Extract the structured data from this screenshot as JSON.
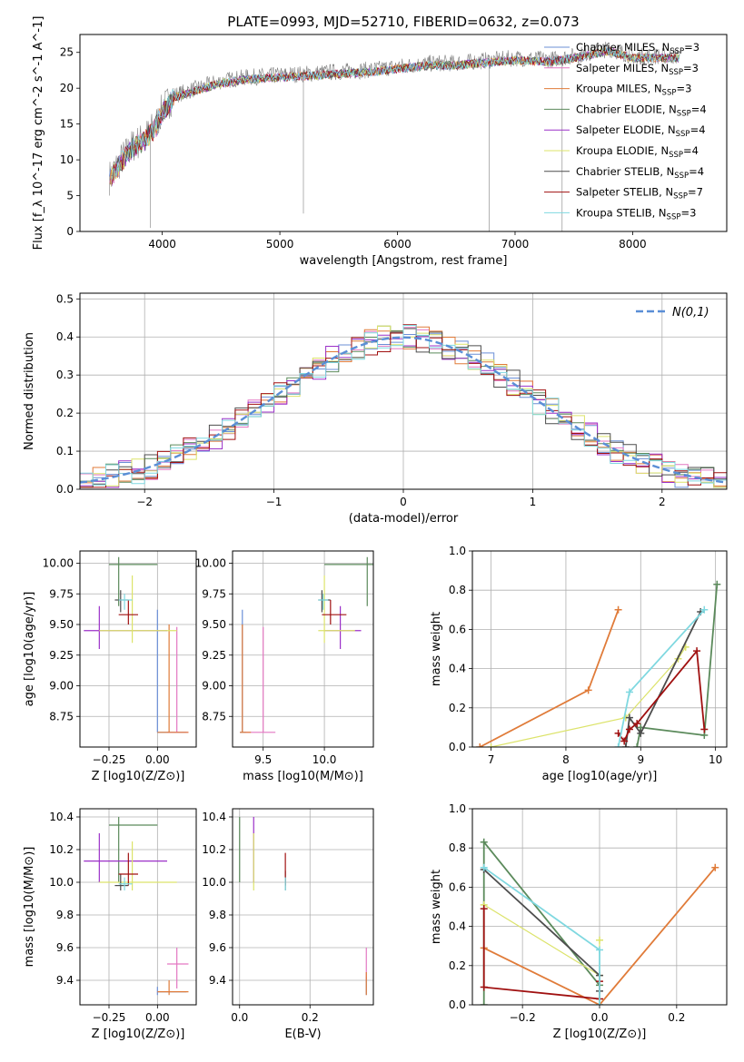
{
  "title": "PLATE=0993, MJD=52710, FIBERID=0632, z=0.073",
  "colors": {
    "Chabrier MILES": "#6b8fd6",
    "Salpeter MILES": "#e377c2",
    "Kroupa MILES": "#e07b39",
    "Chabrier ELODIE": "#5b8a5b",
    "Salpeter ELODIE": "#9b30c8",
    "Kroupa ELODIE": "#dce36a",
    "Chabrier STELIB": "#4d4d4d",
    "Salpeter STELIB": "#a01010",
    "Kroupa STELIB": "#7fd8e0",
    "normal": "#5a8ed6",
    "grid": "#b0b0b0"
  },
  "chart_data": [
    {
      "id": "spectrum",
      "type": "line",
      "title": "PLATE=0993, MJD=52710, FIBERID=0632, z=0.073",
      "xlabel": "wavelength [Angstrom, rest frame]",
      "ylabel": "Flux [f_λ 10^-17 erg cm^-2 s^-1 A^-1]",
      "xlim": [
        3300,
        8800
      ],
      "ylim": [
        0,
        27.5
      ],
      "xticks": [
        4000,
        5000,
        6000,
        7000,
        8000
      ],
      "yticks": [
        0,
        5,
        10,
        15,
        20,
        25
      ],
      "grid": false,
      "legend_position": "top-right",
      "legend": [
        {
          "label": "Chabrier MILES",
          "nssp": "3"
        },
        {
          "label": "Salpeter MILES",
          "nssp": "3"
        },
        {
          "label": "Kroupa MILES",
          "nssp": "3"
        },
        {
          "label": "Chabrier ELODIE",
          "nssp": "4"
        },
        {
          "label": "Salpeter ELODIE",
          "nssp": "4"
        },
        {
          "label": "Kroupa ELODIE",
          "nssp": "4"
        },
        {
          "label": "Chabrier STELIB",
          "nssp": "4"
        },
        {
          "label": "Salpeter STELIB",
          "nssp": "7"
        },
        {
          "label": "Kroupa STELIB",
          "nssp": "3"
        }
      ],
      "continuum": [
        [
          3550,
          7.5
        ],
        [
          3650,
          10
        ],
        [
          3750,
          12
        ],
        [
          3850,
          13
        ],
        [
          3950,
          15
        ],
        [
          4000,
          17
        ],
        [
          4100,
          19
        ],
        [
          4200,
          19.5
        ],
        [
          4300,
          20
        ],
        [
          4500,
          21
        ],
        [
          4700,
          21.5
        ],
        [
          5000,
          21.8
        ],
        [
          5200,
          22
        ],
        [
          5500,
          22.3
        ],
        [
          5800,
          22.6
        ],
        [
          6000,
          23
        ],
        [
          6300,
          23.5
        ],
        [
          6500,
          23.5
        ],
        [
          6700,
          23.8
        ],
        [
          7000,
          24.2
        ],
        [
          7300,
          24
        ],
        [
          7500,
          24.5
        ],
        [
          7800,
          25.5
        ],
        [
          8000,
          24.5
        ],
        [
          8200,
          24.5
        ],
        [
          8400,
          24.5
        ]
      ],
      "data_absorption": [
        [
          5200,
          2.5
        ],
        [
          6780,
          0
        ],
        [
          7400,
          0
        ],
        [
          3900,
          0.5
        ]
      ]
    },
    {
      "id": "residuals",
      "type": "histogram",
      "xlabel": "(data-model)/error",
      "ylabel": "Normed distribution",
      "xlim": [
        -2.5,
        2.5
      ],
      "ylim": [
        0,
        0.515
      ],
      "xticks": [
        -2,
        -1,
        0,
        1,
        2
      ],
      "yticks": [
        0.0,
        0.1,
        0.2,
        0.3,
        0.4,
        0.5
      ],
      "grid": true,
      "legend_position": "top-right",
      "normal_label": "N(0,1)"
    },
    {
      "id": "age-vs-Z",
      "type": "scatter",
      "xlabel": "Z [log10(Z/Z⊙)]",
      "ylabel": "age [log10(age/yr)]",
      "xlim": [
        -0.4,
        0.2
      ],
      "ylim": [
        8.5,
        10.1
      ],
      "xticks": [
        -0.25,
        0.0
      ],
      "yticks": [
        8.75,
        9.0,
        9.25,
        9.5,
        9.75,
        10.0
      ],
      "grid": true
    },
    {
      "id": "age-vs-mass",
      "type": "scatter",
      "xlabel": "mass [log10(M/M⊙)]",
      "ylabel": "",
      "xlim": [
        9.25,
        10.4
      ],
      "ylim": [
        8.5,
        10.1
      ],
      "xticks": [
        9.5,
        10.0
      ],
      "yticks": [
        8.75,
        9.0,
        9.25,
        9.5,
        9.75,
        10.0
      ],
      "grid": true
    },
    {
      "id": "mass-weight-vs-age",
      "type": "line",
      "xlabel": "age [log10(age/yr)]",
      "ylabel": "mass weight",
      "xlim": [
        6.75,
        10.15
      ],
      "ylim": [
        0,
        1
      ],
      "xticks": [
        7,
        8,
        9,
        10
      ],
      "yticks": [
        0.0,
        0.2,
        0.4,
        0.6,
        0.8,
        1.0
      ],
      "grid": true
    },
    {
      "id": "mass-vs-Z",
      "type": "scatter",
      "xlabel": "Z [log10(Z/Z⊙)]",
      "ylabel": "mass [log10(M/M⊙)]",
      "xlim": [
        -0.4,
        0.2
      ],
      "ylim": [
        9.25,
        10.45
      ],
      "xticks": [
        -0.25,
        0.0
      ],
      "yticks": [
        9.4,
        9.6,
        9.8,
        10.0,
        10.2,
        10.4
      ],
      "grid": true
    },
    {
      "id": "mass-vs-ebv",
      "type": "scatter",
      "xlabel": "E(B-V)",
      "ylabel": "",
      "xlim": [
        -0.02,
        0.38
      ],
      "ylim": [
        9.25,
        10.45
      ],
      "xticks": [
        0.0,
        0.2
      ],
      "yticks": [
        9.4,
        9.6,
        9.8,
        10.0,
        10.2,
        10.4
      ],
      "grid": true
    },
    {
      "id": "mass-weight-vs-Z",
      "type": "line",
      "xlabel": "Z [log10(Z/Z⊙)]",
      "ylabel": "mass weight",
      "xlim": [
        -0.33,
        0.33
      ],
      "ylim": [
        0,
        1
      ],
      "xticks": [
        -0.2,
        0.0,
        0.2
      ],
      "yticks": [
        0.0,
        0.2,
        0.4,
        0.6,
        0.8,
        1.0
      ],
      "grid": true
    }
  ],
  "models": [
    {
      "name": "Chabrier MILES",
      "Z": 0.0,
      "Z_lo": 0.0,
      "Z_hi": 0.15,
      "age": 8.62,
      "age_lo": 8.62,
      "age_hi": 9.62,
      "mass": 9.33,
      "mass_lo": 9.31,
      "mass_hi": 9.36,
      "ebv": 0.36,
      "ebv_lo": 9.31,
      "ebv_hi": 9.42
    },
    {
      "name": "Salpeter MILES",
      "Z": 0.1,
      "Z_lo": 0.05,
      "Z_hi": 0.16,
      "age": 8.62,
      "age_lo": 8.62,
      "age_hi": 9.48,
      "mass": 9.5,
      "mass_lo": 9.35,
      "mass_hi": 9.6,
      "ebv": 0.36,
      "ebv_lo": 9.4,
      "ebv_hi": 9.6
    },
    {
      "name": "Kroupa MILES",
      "Z": 0.06,
      "Z_lo": 0.0,
      "Z_hi": 0.16,
      "age": 8.62,
      "age_lo": 8.62,
      "age_hi": 9.5,
      "mass": 9.33,
      "mass_lo": 9.31,
      "mass_hi": 9.4,
      "ebv": 0.36,
      "ebv_lo": 9.31,
      "ebv_hi": 9.45
    },
    {
      "name": "Chabrier ELODIE",
      "Z": -0.2,
      "Z_lo": -0.25,
      "Z_hi": 0.0,
      "age": 9.99,
      "age_lo": 9.65,
      "age_hi": 10.05,
      "mass": 10.35,
      "mass_lo": 10.0,
      "mass_hi": 10.4,
      "ebv": 0.0,
      "ebv_lo": 10.0,
      "ebv_hi": 10.4
    },
    {
      "name": "Salpeter ELODIE",
      "Z": -0.3,
      "Z_lo": -0.38,
      "Z_hi": 0.05,
      "age": 9.45,
      "age_lo": 9.3,
      "age_hi": 9.65,
      "mass": 10.13,
      "mass_lo": 10.0,
      "mass_hi": 10.3,
      "ebv": 0.04,
      "ebv_lo": 10.0,
      "ebv_hi": 10.4
    },
    {
      "name": "Kroupa ELODIE",
      "Z": -0.13,
      "Z_lo": -0.3,
      "Z_hi": 0.1,
      "age": 9.45,
      "age_lo": 9.35,
      "age_hi": 9.9,
      "mass": 10.0,
      "mass_lo": 9.95,
      "mass_hi": 10.25,
      "ebv": 0.04,
      "ebv_lo": 9.95,
      "ebv_hi": 10.3
    },
    {
      "name": "Chabrier STELIB",
      "Z": -0.19,
      "Z_lo": -0.22,
      "Z_hi": -0.15,
      "age": 9.7,
      "age_lo": 9.6,
      "age_hi": 9.78,
      "mass": 9.98,
      "mass_lo": 9.95,
      "mass_hi": 10.05,
      "ebv": 0.13,
      "ebv_lo": 9.95,
      "ebv_hi": 10.07
    },
    {
      "name": "Salpeter STELIB",
      "Z": -0.15,
      "Z_lo": -0.2,
      "Z_hi": -0.1,
      "age": 9.58,
      "age_lo": 9.5,
      "age_hi": 9.7,
      "mass": 10.05,
      "mass_lo": 9.98,
      "mass_hi": 10.18,
      "ebv": 0.13,
      "ebv_lo": 9.98,
      "ebv_hi": 10.18
    },
    {
      "name": "Kroupa STELIB",
      "Z": -0.17,
      "Z_lo": -0.2,
      "Z_hi": -0.13,
      "age": 9.7,
      "age_lo": 9.62,
      "age_hi": 9.75,
      "mass": 9.99,
      "mass_lo": 9.95,
      "mass_hi": 10.03,
      "ebv": 0.13,
      "ebv_lo": 9.95,
      "ebv_hi": 10.03
    }
  ],
  "mass_weight_age": [
    {
      "name": "Kroupa MILES",
      "points": [
        [
          6.85,
          0.0
        ],
        [
          8.3,
          0.29
        ],
        [
          8.7,
          0.7
        ]
      ]
    },
    {
      "name": "Chabrier ELODIE",
      "points": [
        [
          8.95,
          0.0
        ],
        [
          9.0,
          0.1
        ],
        [
          9.85,
          0.06
        ],
        [
          10.02,
          0.83
        ]
      ]
    },
    {
      "name": "Kroupa ELODIE",
      "points": [
        [
          7.0,
          0.0
        ],
        [
          8.8,
          0.15
        ],
        [
          9.5,
          0.45
        ],
        [
          9.6,
          0.51
        ]
      ]
    },
    {
      "name": "Chabrier STELIB",
      "points": [
        [
          8.8,
          0.0
        ],
        [
          8.85,
          0.15
        ],
        [
          9.0,
          0.07
        ],
        [
          9.8,
          0.69
        ]
      ]
    },
    {
      "name": "Salpeter STELIB",
      "points": [
        [
          8.7,
          0.07
        ],
        [
          8.78,
          0.03
        ],
        [
          8.85,
          0.09
        ],
        [
          8.95,
          0.12
        ],
        [
          9.75,
          0.49
        ],
        [
          9.85,
          0.09
        ]
      ]
    },
    {
      "name": "Kroupa STELIB",
      "points": [
        [
          8.7,
          0.0
        ],
        [
          8.85,
          0.28
        ],
        [
          9.85,
          0.7
        ]
      ]
    }
  ],
  "mass_weight_Z": [
    {
      "name": "Kroupa MILES",
      "points": [
        [
          -0.3,
          0.29
        ],
        [
          0.0,
          0.0
        ],
        [
          0.3,
          0.7
        ]
      ]
    },
    {
      "name": "Chabrier ELODIE",
      "points": [
        [
          -0.3,
          0.0
        ],
        [
          -0.3,
          0.83
        ],
        [
          0.0,
          0.1
        ]
      ]
    },
    {
      "name": "Kroupa ELODIE",
      "points": [
        [
          -0.3,
          0.51
        ],
        [
          0.0,
          0.15
        ],
        [
          0.0,
          0.33
        ]
      ]
    },
    {
      "name": "Chabrier STELIB",
      "points": [
        [
          -0.3,
          0.69
        ],
        [
          0.0,
          0.15
        ],
        [
          0.0,
          0.07
        ]
      ]
    },
    {
      "name": "Salpeter STELIB",
      "points": [
        [
          -0.3,
          0.49
        ],
        [
          -0.3,
          0.09
        ],
        [
          0.0,
          0.03
        ],
        [
          0.0,
          0.12
        ]
      ]
    },
    {
      "name": "Kroupa STELIB",
      "points": [
        [
          -0.3,
          0.7
        ],
        [
          0.0,
          0.28
        ],
        [
          0.0,
          0.0
        ]
      ]
    }
  ]
}
